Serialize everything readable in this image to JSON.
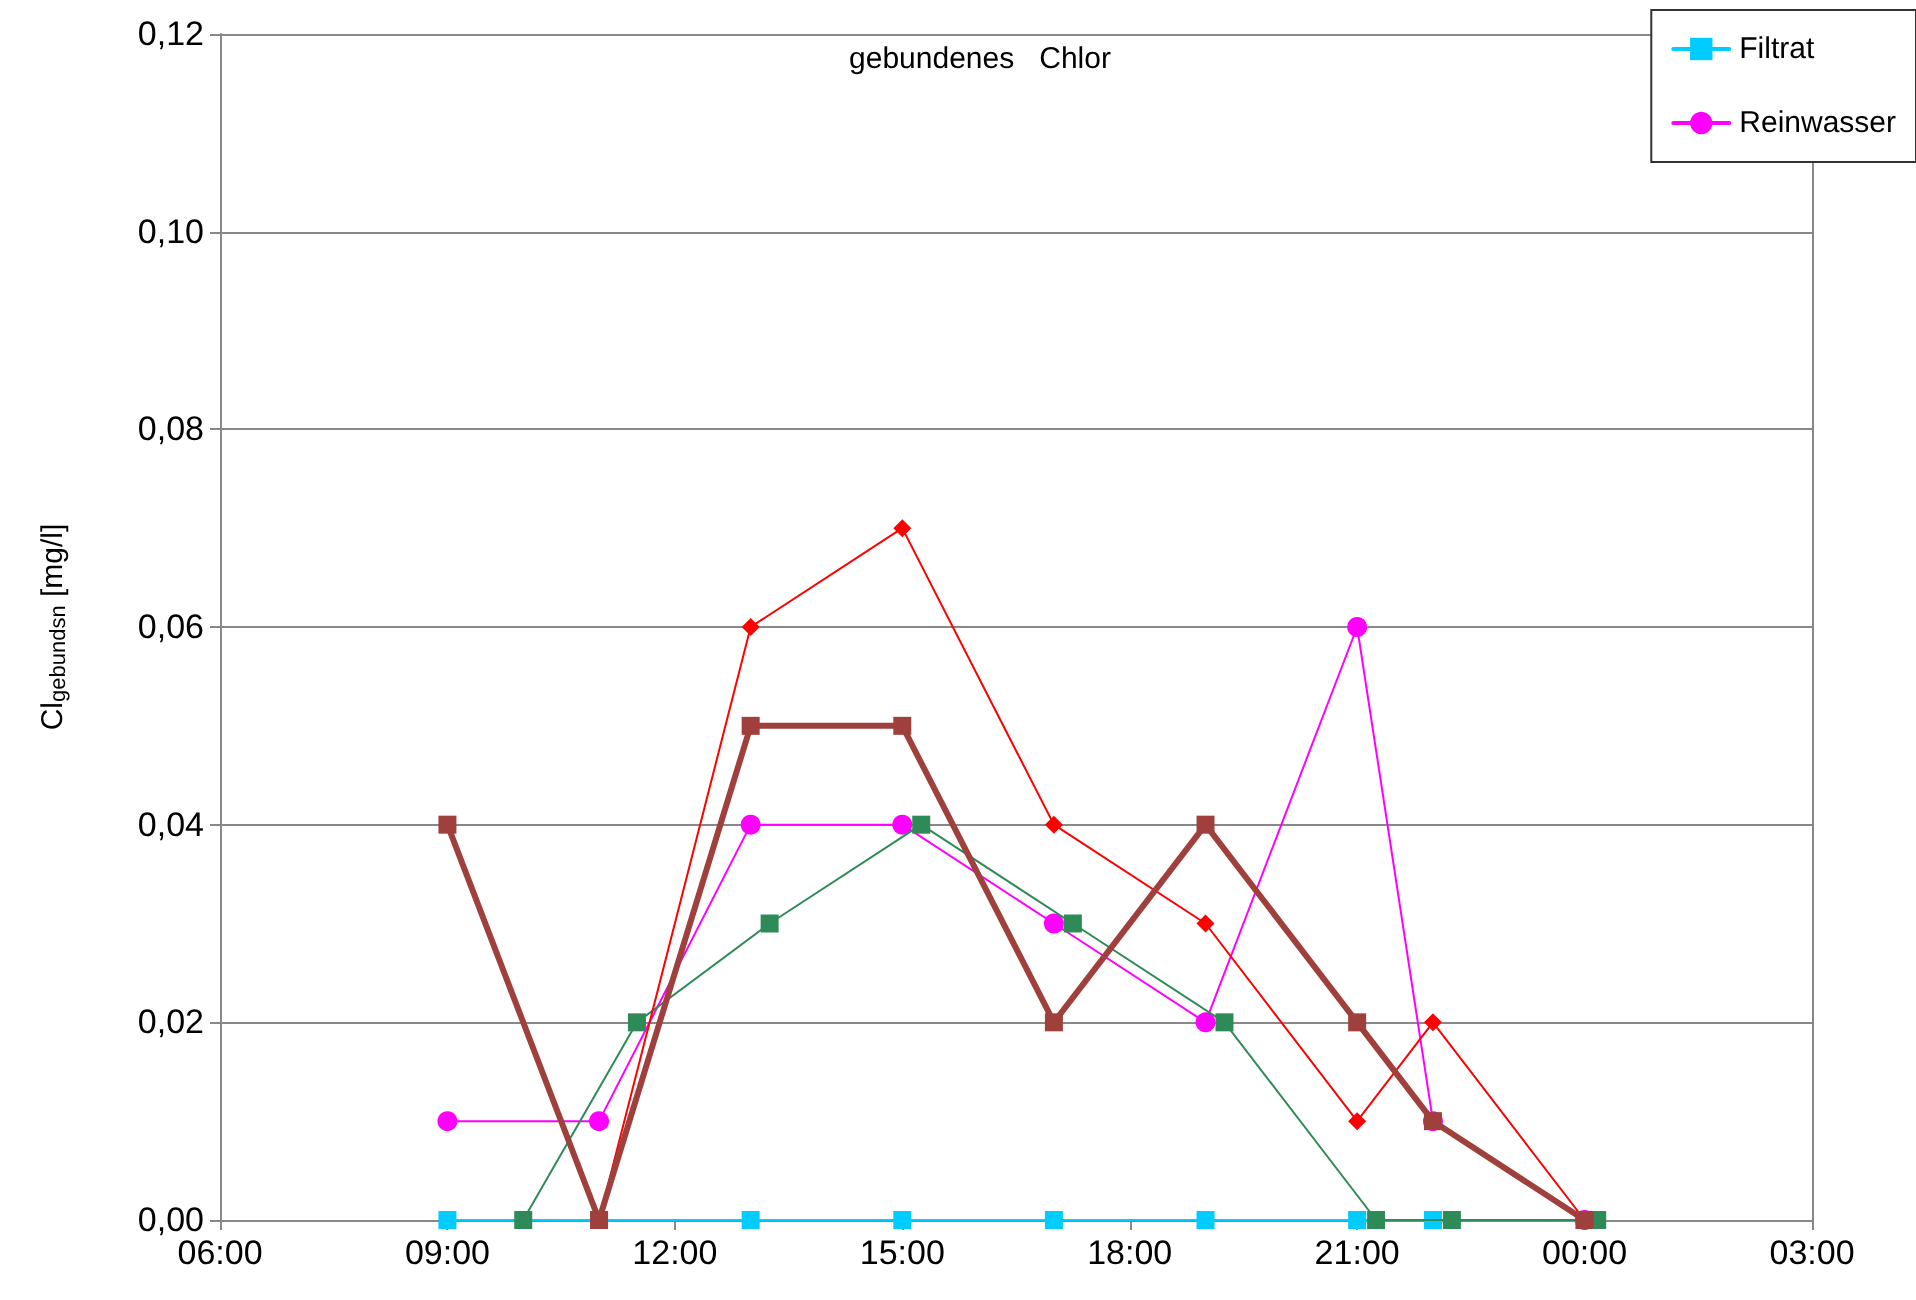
{
  "chart_data": {
    "type": "line",
    "title": "gebundenes   Chlor",
    "ylabel": "Cl$_{gebundsn}$ [mg/l]",
    "xlim": [
      "--01-01T06:00",
      "--01-02T03:00"
    ],
    "xticks": [
      {
        "value": "--01-01T06:00",
        "label": "06:00"
      },
      {
        "value": "--01-01T09:00",
        "label": "09:00"
      },
      {
        "value": "--01-01T12:00",
        "label": "12:00"
      },
      {
        "value": "--01-01T15:00",
        "label": "15:00"
      },
      {
        "value": "--01-01T18:00",
        "label": "18:00"
      },
      {
        "value": "--01-01T21:00",
        "label": "21:00"
      },
      {
        "value": "--01-02T00:00",
        "label": "00:00"
      },
      {
        "value": "--01-02T03:00",
        "label": "03:00"
      }
    ],
    "ylim": [
      0,
      0.12
    ],
    "yticks": [
      {
        "value": 0,
        "label": "0,00"
      },
      {
        "value": 0.02,
        "label": "0,02"
      },
      {
        "value": 0.04,
        "label": "0,04"
      },
      {
        "value": 0.06,
        "label": "0,06"
      },
      {
        "value": 0.08,
        "label": "0,08"
      },
      {
        "value": 0.1,
        "label": "0,10"
      },
      {
        "value": 0.12,
        "label": "0,12"
      }
    ],
    "grid": "y",
    "legend": "top right",
    "series": [
      {
        "color": "#a0403c",
        "marker": "square",
        "x": [
          "--01-01T09:00",
          "--01-01T11:00",
          "--01-01T13:00",
          "--01-01T15:00",
          "--01-01T17:00",
          "--01-01T19:00",
          "--01-01T21:00",
          "--01-01T22:00",
          "--01-02T00:00"
        ],
        "values": [
          0.04,
          0,
          0.05,
          0.05,
          0.02,
          0.04,
          0.02,
          0.01,
          0
        ]
      },
      {
        "color": "#ff0000",
        "marker": "diamond",
        "x": [
          "--01-01T11:00",
          "--01-01T13:00",
          "--01-01T15:00",
          "--01-01T17:00",
          "--01-01T19:00",
          "--01-01T21:00",
          "--01-01T22:00",
          "--01-02T00:00"
        ],
        "values": [
          0,
          0.06,
          0.07,
          0.04,
          0.03,
          0.01,
          0.02,
          0
        ]
      },
      {
        "color": "#2e8b57",
        "marker": "square",
        "x": [
          "--01-01T10:00",
          "--01-01T11:30",
          "--01-01T13:15",
          "--01-01T15:15",
          "--01-01T17:15",
          "--01-01T19:15",
          "--01-01T21:15",
          "--01-01T22:15",
          "--01-02T00:10"
        ],
        "values": [
          0,
          0.02,
          0.03,
          0.04,
          0.03,
          0.02,
          0,
          0,
          0
        ]
      },
      {
        "name": "Filtrat",
        "color": "#00ccff",
        "marker": "square",
        "x": [
          "--01-01T09:00",
          "--01-01T11:00",
          "--01-01T13:00",
          "--01-01T15:00",
          "--01-01T17:00",
          "--01-01T19:00",
          "--01-01T21:00",
          "--01-01T22:00",
          "--01-02T00:00"
        ],
        "values": [
          0,
          0,
          0,
          0,
          0,
          0,
          0,
          0,
          0
        ]
      },
      {
        "name": "Reinwasser",
        "color": "#ff00ff",
        "marker": "circle",
        "x": [
          "--01-01T09:00",
          "--01-01T11:00",
          "--01-01T13:00",
          "--01-01T15:00",
          "--01-01T17:00",
          "--01-01T19:00",
          "--01-01T21:00",
          "--01-01T22:00",
          "--01-02T00:00"
        ],
        "values": [
          0.01,
          0.01,
          0.04,
          0.04,
          0.03,
          0.02,
          0.06,
          0.01,
          0
        ]
      }
    ]
  }
}
